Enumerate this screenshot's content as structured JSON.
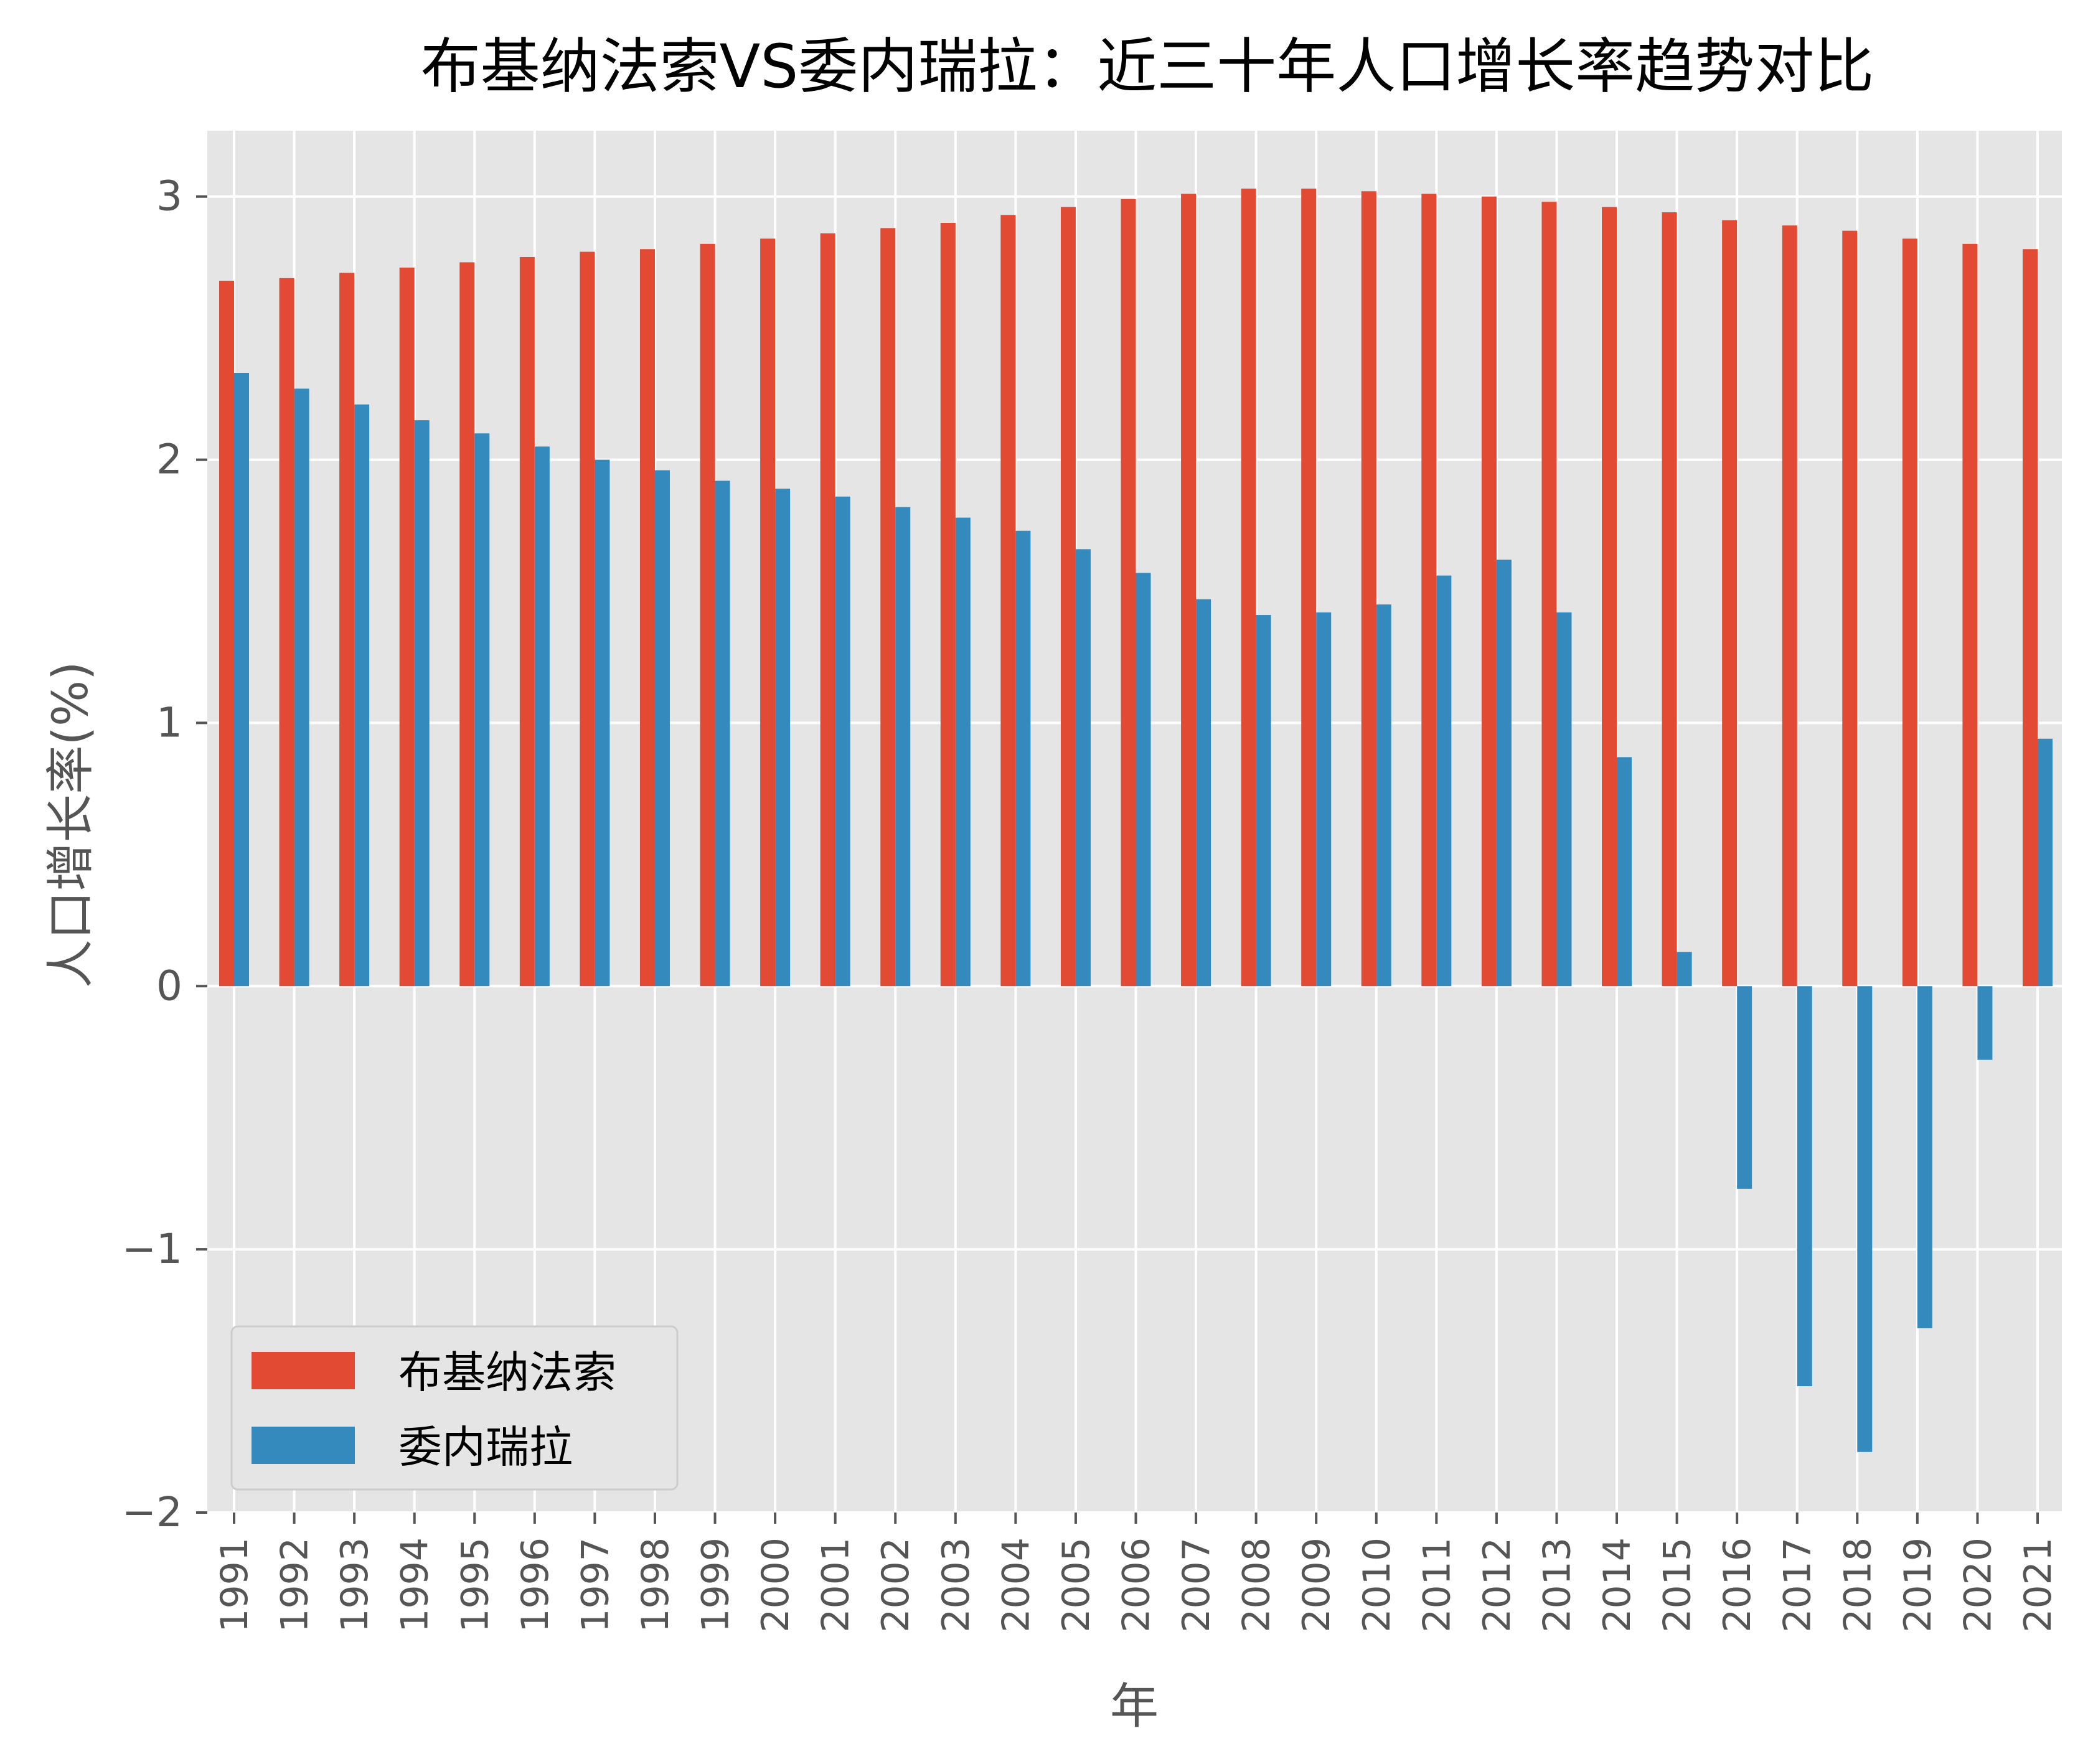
{
  "chart_data": {
    "type": "bar",
    "title": "布基纳法索VS委内瑞拉：近三十年人口增长率趋势对比",
    "xlabel": "年",
    "ylabel": "人口增长率(%)",
    "ylim": [
      -2,
      3.25
    ],
    "yticks": [
      -2,
      -1,
      0,
      1,
      2,
      3
    ],
    "grid": true,
    "legend_position": "lower-left",
    "categories": [
      "1991",
      "1992",
      "1993",
      "1994",
      "1995",
      "1996",
      "1997",
      "1998",
      "1999",
      "2000",
      "2001",
      "2002",
      "2003",
      "2004",
      "2005",
      "2006",
      "2007",
      "2008",
      "2009",
      "2010",
      "2011",
      "2012",
      "2013",
      "2014",
      "2015",
      "2016",
      "2017",
      "2018",
      "2019",
      "2020",
      "2021"
    ],
    "series": [
      {
        "name": "布基纳法索",
        "color": "#E24A33",
        "values": [
          2.68,
          2.69,
          2.71,
          2.73,
          2.75,
          2.77,
          2.79,
          2.8,
          2.82,
          2.84,
          2.86,
          2.88,
          2.9,
          2.93,
          2.96,
          2.99,
          3.01,
          3.03,
          3.03,
          3.02,
          3.01,
          3.0,
          2.98,
          2.96,
          2.94,
          2.91,
          2.89,
          2.87,
          2.84,
          2.82,
          2.8
        ]
      },
      {
        "name": "委内瑞拉",
        "color": "#348ABD",
        "values": [
          2.33,
          2.27,
          2.21,
          2.15,
          2.1,
          2.05,
          2.0,
          1.96,
          1.92,
          1.89,
          1.86,
          1.82,
          1.78,
          1.73,
          1.66,
          1.57,
          1.47,
          1.41,
          1.42,
          1.45,
          1.56,
          1.62,
          1.42,
          0.87,
          0.13,
          -0.77,
          -1.52,
          -1.77,
          -1.3,
          -0.28,
          0.94
        ]
      }
    ]
  }
}
